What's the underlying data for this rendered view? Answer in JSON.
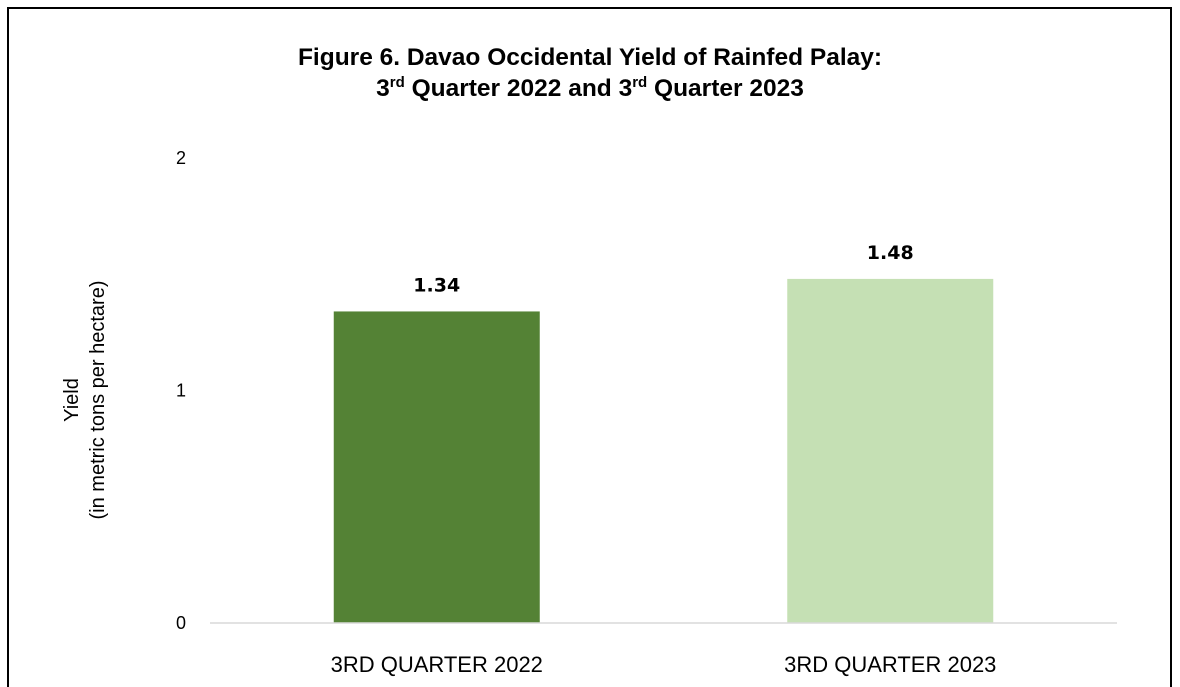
{
  "chart_data": {
    "type": "bar",
    "title": {
      "line1": "Figure 6. Davao Occidental Yield of Rainfed Palay:",
      "line2_q1_num": "3",
      "line2_q1_sup": "rd",
      "line2_mid": " Quarter 2022 and ",
      "line2_q2_num": "3",
      "line2_q2_sup": "rd",
      "line2_end": " Quarter 2023"
    },
    "ylabel_line1": "Yield",
    "ylabel_line2": "(in metric tons per hectare)",
    "xlabel": "",
    "categories": [
      "3RD QUARTER 2022",
      "3RD QUARTER 2023"
    ],
    "values": [
      1.34,
      1.48
    ],
    "data_labels": [
      "1.34",
      "1.48"
    ],
    "colors": [
      "#548235",
      "#c5e0b4"
    ],
    "ylim": [
      0,
      2
    ],
    "yticks": [
      0,
      1,
      2
    ],
    "ytick_labels": [
      "0",
      "1",
      "2"
    ],
    "grid": false,
    "legend": "none"
  }
}
